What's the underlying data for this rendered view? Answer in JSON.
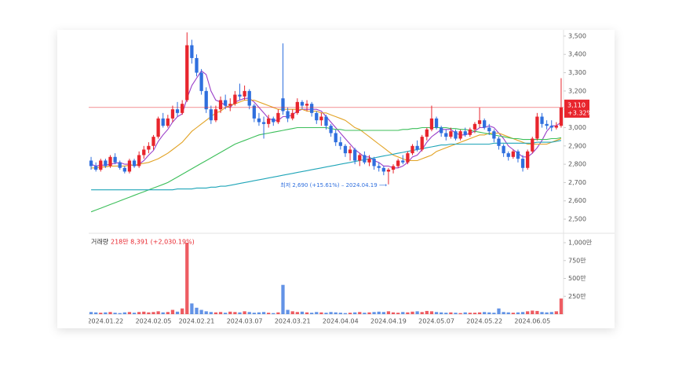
{
  "chart_data": {
    "type": "candlestick",
    "categories": [
      null,
      null,
      null,
      "2024.01.22",
      null,
      null,
      null,
      null,
      null,
      null,
      null,
      null,
      null,
      "2024.02.05",
      null,
      null,
      null,
      null,
      null,
      null,
      null,
      null,
      "2024.02.21",
      null,
      null,
      null,
      null,
      null,
      null,
      null,
      null,
      null,
      "2024.03.07",
      null,
      null,
      null,
      null,
      null,
      null,
      null,
      null,
      null,
      "2024.03.21",
      null,
      null,
      null,
      null,
      null,
      null,
      null,
      null,
      null,
      "2024.04.04",
      null,
      null,
      null,
      null,
      null,
      null,
      null,
      null,
      null,
      "2024.04.19",
      null,
      null,
      null,
      null,
      null,
      null,
      null,
      null,
      null,
      "2024.05.07",
      null,
      null,
      null,
      null,
      null,
      null,
      null,
      null,
      null,
      "2024.05.22",
      null,
      null,
      null,
      null,
      null,
      null,
      null,
      null,
      null,
      "2024.06.05",
      null,
      null,
      null,
      null,
      null,
      null
    ],
    "candles": [
      [
        2820,
        2840,
        2770,
        2790
      ],
      [
        2790,
        2810,
        2760,
        2770
      ],
      [
        2770,
        2830,
        2760,
        2820
      ],
      [
        2820,
        2830,
        2780,
        2790
      ],
      [
        2790,
        2850,
        2780,
        2840
      ],
      [
        2840,
        2860,
        2800,
        2810
      ],
      [
        2810,
        2820,
        2770,
        2780
      ],
      [
        2780,
        2790,
        2750,
        2760
      ],
      [
        2760,
        2830,
        2750,
        2820
      ],
      [
        2820,
        2830,
        2780,
        2790
      ],
      [
        2790,
        2870,
        2780,
        2850
      ],
      [
        2850,
        2900,
        2830,
        2880
      ],
      [
        2880,
        2920,
        2860,
        2900
      ],
      [
        2900,
        2960,
        2880,
        2950
      ],
      [
        2950,
        3060,
        2940,
        3050
      ],
      [
        3050,
        3080,
        3000,
        3010
      ],
      [
        3010,
        3070,
        3000,
        3050
      ],
      [
        3050,
        3120,
        3030,
        3100
      ],
      [
        3100,
        3140,
        3060,
        3080
      ],
      [
        3080,
        3150,
        3070,
        3130
      ],
      [
        3150,
        3520,
        3140,
        3450
      ],
      [
        3450,
        3480,
        3350,
        3380
      ],
      [
        3380,
        3400,
        3280,
        3300
      ],
      [
        3300,
        3320,
        3180,
        3200
      ],
      [
        3200,
        3220,
        3080,
        3100
      ],
      [
        3100,
        3120,
        3020,
        3040
      ],
      [
        3040,
        3120,
        3030,
        3100
      ],
      [
        3100,
        3170,
        3080,
        3150
      ],
      [
        3150,
        3180,
        3100,
        3120
      ],
      [
        3120,
        3160,
        3090,
        3130
      ],
      [
        3130,
        3200,
        3120,
        3180
      ],
      [
        3180,
        3240,
        3150,
        3170
      ],
      [
        3170,
        3230,
        3150,
        3200
      ],
      [
        3200,
        3210,
        3100,
        3120
      ],
      [
        3120,
        3130,
        3030,
        3050
      ],
      [
        3050,
        3080,
        3010,
        3030
      ],
      [
        3030,
        3060,
        2940,
        3020
      ],
      [
        3020,
        3070,
        3000,
        3050
      ],
      [
        3050,
        3060,
        3010,
        3030
      ],
      [
        3030,
        3100,
        3020,
        3080
      ],
      [
        3160,
        3460,
        3070,
        3090
      ],
      [
        3090,
        3110,
        3030,
        3050
      ],
      [
        3050,
        3100,
        3040,
        3080
      ],
      [
        3080,
        3160,
        3070,
        3140
      ],
      [
        3140,
        3150,
        3100,
        3120
      ],
      [
        3120,
        3150,
        3090,
        3130
      ],
      [
        3130,
        3140,
        3060,
        3080
      ],
      [
        3080,
        3090,
        3020,
        3040
      ],
      [
        3040,
        3080,
        3010,
        3060
      ],
      [
        3060,
        3070,
        2990,
        3010
      ],
      [
        3010,
        3020,
        2950,
        2970
      ],
      [
        2970,
        2990,
        2900,
        2920
      ],
      [
        2920,
        2950,
        2880,
        2900
      ],
      [
        2900,
        2910,
        2840,
        2860
      ],
      [
        2860,
        2900,
        2820,
        2880
      ],
      [
        2880,
        2890,
        2800,
        2820
      ],
      [
        2820,
        2860,
        2790,
        2850
      ],
      [
        2850,
        2870,
        2800,
        2810
      ],
      [
        2810,
        2850,
        2790,
        2830
      ],
      [
        2830,
        2840,
        2770,
        2790
      ],
      [
        2790,
        2810,
        2760,
        2780
      ],
      [
        2780,
        2790,
        2740,
        2760
      ],
      [
        2760,
        2780,
        2690,
        2770
      ],
      [
        2770,
        2800,
        2750,
        2790
      ],
      [
        2790,
        2830,
        2780,
        2820
      ],
      [
        2820,
        2850,
        2800,
        2810
      ],
      [
        2810,
        2870,
        2800,
        2860
      ],
      [
        2860,
        2910,
        2850,
        2900
      ],
      [
        2900,
        2930,
        2870,
        2880
      ],
      [
        2880,
        2960,
        2870,
        2950
      ],
      [
        2950,
        3000,
        2930,
        2990
      ],
      [
        2990,
        3120,
        2980,
        3050
      ],
      [
        3050,
        3060,
        2990,
        3000
      ],
      [
        3000,
        3010,
        2950,
        2970
      ],
      [
        2970,
        2990,
        2930,
        2950
      ],
      [
        2950,
        3000,
        2940,
        2980
      ],
      [
        2980,
        2990,
        2930,
        2940
      ],
      [
        2940,
        2990,
        2930,
        2980
      ],
      [
        2980,
        3000,
        2950,
        2960
      ],
      [
        2960,
        3000,
        2950,
        2990
      ],
      [
        2990,
        3030,
        2970,
        3020
      ],
      [
        3020,
        3110,
        3000,
        3040
      ],
      [
        3040,
        3050,
        2990,
        3000
      ],
      [
        3000,
        3020,
        2960,
        2980
      ],
      [
        2980,
        2990,
        2920,
        2940
      ],
      [
        2940,
        2950,
        2880,
        2900
      ],
      [
        2900,
        2910,
        2840,
        2860
      ],
      [
        2860,
        2870,
        2820,
        2840
      ],
      [
        2840,
        2880,
        2830,
        2870
      ],
      [
        2870,
        2880,
        2810,
        2830
      ],
      [
        2830,
        2850,
        2760,
        2780
      ],
      [
        2780,
        2880,
        2770,
        2870
      ],
      [
        2870,
        2950,
        2860,
        2940
      ],
      [
        2940,
        3080,
        2930,
        3060
      ],
      [
        3060,
        3080,
        3000,
        3020
      ],
      [
        3020,
        3040,
        2990,
        3010
      ],
      [
        3010,
        3040,
        2980,
        3000
      ],
      [
        3000,
        3030,
        2990,
        3010
      ],
      [
        3010,
        3270,
        3000,
        3110
      ]
    ],
    "up_color": "#e8252d",
    "down_color": "#2f6fde",
    "moving_averages": [
      {
        "color": "#9b3fc9",
        "values": [
          2800,
          2790,
          2795,
          2795,
          2800,
          2805,
          2810,
          2800,
          2800,
          2790,
          2800,
          2820,
          2850,
          2875,
          2925,
          2960,
          2990,
          3030,
          3060,
          3075,
          3160,
          3230,
          3270,
          3310,
          3290,
          3200,
          3150,
          3140,
          3120,
          3110,
          3140,
          3150,
          3160,
          3160,
          3140,
          3110,
          3080,
          3050,
          3040,
          3040,
          3060,
          3060,
          3070,
          3090,
          3100,
          3100,
          3100,
          3100,
          3090,
          3060,
          3030,
          3000,
          2970,
          2940,
          2910,
          2880,
          2860,
          2840,
          2840,
          2820,
          2810,
          2790,
          2790,
          2780,
          2780,
          2790,
          2810,
          2840,
          2850,
          2880,
          2920,
          2950,
          2970,
          2990,
          2990,
          2990,
          2970,
          2960,
          2960,
          2970,
          2980,
          3000,
          3000,
          3010,
          3000,
          2970,
          2940,
          2900,
          2880,
          2860,
          2840,
          2840,
          2860,
          2890,
          2930,
          2980,
          3010,
          3010,
          3030
        ]
      },
      {
        "color": "#e2a325",
        "values": [
          2780,
          2780,
          2785,
          2785,
          2790,
          2790,
          2790,
          2790,
          2795,
          2795,
          2800,
          2805,
          2810,
          2820,
          2830,
          2845,
          2860,
          2880,
          2900,
          2920,
          2950,
          2980,
          3000,
          3020,
          3040,
          3060,
          3080,
          3090,
          3110,
          3120,
          3130,
          3140,
          3150,
          3150,
          3150,
          3140,
          3130,
          3120,
          3110,
          3100,
          3100,
          3100,
          3100,
          3100,
          3100,
          3090,
          3090,
          3090,
          3080,
          3080,
          3070,
          3060,
          3050,
          3040,
          3020,
          3000,
          2990,
          2970,
          2950,
          2930,
          2910,
          2890,
          2870,
          2850,
          2840,
          2830,
          2820,
          2820,
          2820,
          2830,
          2840,
          2850,
          2870,
          2880,
          2890,
          2900,
          2910,
          2920,
          2930,
          2940,
          2950,
          2960,
          2960,
          2970,
          2970,
          2970,
          2960,
          2950,
          2940,
          2930,
          2920,
          2910,
          2910,
          2910,
          2910,
          2910,
          2920,
          2930,
          2940
        ]
      },
      {
        "color": "#3cbf5a",
        "values": [
          2540,
          2550,
          2560,
          2570,
          2580,
          2590,
          2600,
          2610,
          2620,
          2630,
          2640,
          2650,
          2660,
          2670,
          2680,
          2690,
          2700,
          2715,
          2730,
          2745,
          2760,
          2775,
          2790,
          2805,
          2820,
          2835,
          2850,
          2865,
          2880,
          2895,
          2910,
          2920,
          2930,
          2940,
          2950,
          2960,
          2965,
          2970,
          2975,
          2980,
          2985,
          2990,
          2995,
          3000,
          3000,
          3000,
          3000,
          3000,
          3000,
          3000,
          2995,
          2990,
          2990,
          2985,
          2985,
          2985,
          2985,
          2985,
          2985,
          2985,
          2985,
          2985,
          2985,
          2985,
          2985,
          2990,
          2990,
          2995,
          2995,
          3000,
          3000,
          3000,
          3000,
          3000,
          3000,
          2995,
          2995,
          2990,
          2990,
          2985,
          2980,
          2975,
          2970,
          2965,
          2960,
          2955,
          2950,
          2945,
          2940,
          2940,
          2935,
          2935,
          2935,
          2935,
          2935,
          2935,
          2940,
          2940,
          2945
        ]
      },
      {
        "color": "#1fa5b8",
        "values": [
          2660,
          2660,
          2660,
          2660,
          2660,
          2660,
          2660,
          2660,
          2660,
          2660,
          2660,
          2660,
          2660,
          2660,
          2660,
          2660,
          2660,
          2660,
          2665,
          2665,
          2665,
          2665,
          2670,
          2670,
          2670,
          2675,
          2675,
          2680,
          2680,
          2685,
          2690,
          2695,
          2700,
          2705,
          2710,
          2715,
          2720,
          2725,
          2730,
          2735,
          2740,
          2745,
          2750,
          2755,
          2760,
          2765,
          2770,
          2775,
          2780,
          2785,
          2790,
          2795,
          2800,
          2805,
          2810,
          2815,
          2820,
          2825,
          2830,
          2835,
          2840,
          2845,
          2850,
          2855,
          2860,
          2865,
          2870,
          2875,
          2880,
          2885,
          2890,
          2895,
          2900,
          2905,
          2905,
          2910,
          2910,
          2910,
          2910,
          2910,
          2910,
          2910,
          2910,
          2910,
          2915,
          2915,
          2915,
          2915,
          2915,
          2915,
          2915,
          2915,
          2915,
          2920,
          2920,
          2920,
          2920,
          2925,
          2930
        ]
      }
    ],
    "ylim": [
      2423,
      3534
    ],
    "yticks": [
      {
        "value": 3500,
        "label": "3,500"
      },
      {
        "value": 3400,
        "label": "3,400"
      },
      {
        "value": 3300,
        "label": "3,300"
      },
      {
        "value": 3200,
        "label": "3,200"
      },
      {
        "value": 3100,
        "label": "3,100"
      },
      {
        "value": 3000,
        "label": "3,000"
      },
      {
        "value": 2900,
        "label": "2,900"
      },
      {
        "value": 2800,
        "label": "2,800"
      },
      {
        "value": 2700,
        "label": "2,700"
      },
      {
        "value": 2600,
        "label": "2,600"
      },
      {
        "value": 2500,
        "label": "2,500"
      }
    ],
    "last_price": {
      "value": 3110,
      "label": "3,110",
      "change": "+3.32%"
    },
    "low_annotation": "최저 2,690 (+15.61%) – 2024.04.19 ⟶",
    "volume": {
      "title": "거래량",
      "summary": "218만 8,391 (+2,030.19%)",
      "values": [
        30,
        25,
        20,
        25,
        30,
        20,
        15,
        25,
        30,
        20,
        30,
        35,
        25,
        30,
        40,
        25,
        30,
        60,
        35,
        80,
        1000,
        150,
        90,
        60,
        40,
        30,
        25,
        30,
        20,
        35,
        30,
        25,
        40,
        30,
        20,
        25,
        30,
        20,
        15,
        25,
        410,
        60,
        40,
        30,
        35,
        25,
        20,
        30,
        25,
        20,
        30,
        25,
        20,
        15,
        20,
        25,
        30,
        20,
        25,
        30,
        35,
        30,
        40,
        25,
        20,
        30,
        25,
        35,
        40,
        30,
        45,
        40,
        30,
        25,
        20,
        25,
        20,
        15,
        25,
        20,
        20,
        25,
        30,
        25,
        20,
        80,
        30,
        25,
        20,
        25,
        30,
        40,
        50,
        45,
        30,
        25,
        30,
        40,
        218.8391
      ],
      "ylim": [
        0,
        1132
      ],
      "yticks": [
        {
          "value": 1000,
          "label": "1,000만"
        },
        {
          "value": 750,
          "label": "750만"
        },
        {
          "value": 500,
          "label": "500만"
        },
        {
          "value": 250,
          "label": "250만"
        }
      ]
    }
  }
}
